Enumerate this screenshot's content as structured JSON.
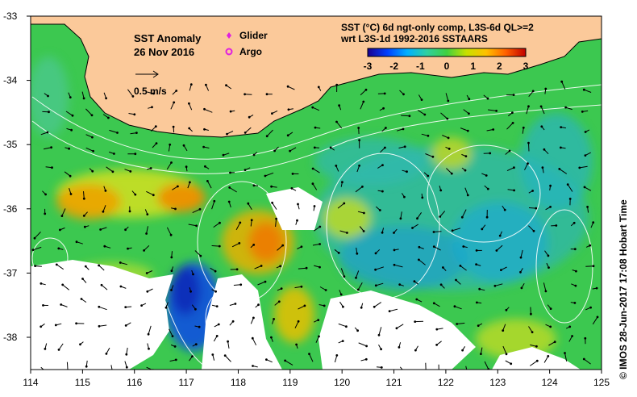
{
  "map": {
    "title": "SST Anomaly",
    "date": "26 Nov 2016",
    "scale_label": "0.5 m/s",
    "legend": {
      "glider": "Glider",
      "argo": "Argo",
      "glider_color": "#e020e0",
      "argo_color": "#e020e0"
    },
    "product_line1": "SST (°C) 6d ngt-only comp, L3S-6d QL>=2",
    "product_line2": "wrt L3S-1d 1992-2016 SSTAARS",
    "colorbar": {
      "min": -3,
      "max": 3,
      "ticks": [
        "-3",
        "-2",
        "-1",
        "0",
        "1",
        "2",
        "3"
      ],
      "stops": [
        "#1a0090",
        "#0040ff",
        "#00b0ff",
        "#30d0a0",
        "#40d040",
        "#c8e000",
        "#ffc000",
        "#ff6000",
        "#c00000"
      ]
    },
    "credit": "© IMOS 28-Jun-2017 17:08 Hobart Time",
    "land_color": "#fbc99a",
    "x_ticks": [
      "114",
      "115",
      "116",
      "117",
      "118",
      "119",
      "120",
      "121",
      "122",
      "123",
      "124",
      "125"
    ],
    "y_ticks": [
      "-33",
      "-34",
      "-35",
      "-36",
      "-37",
      "-38"
    ]
  }
}
